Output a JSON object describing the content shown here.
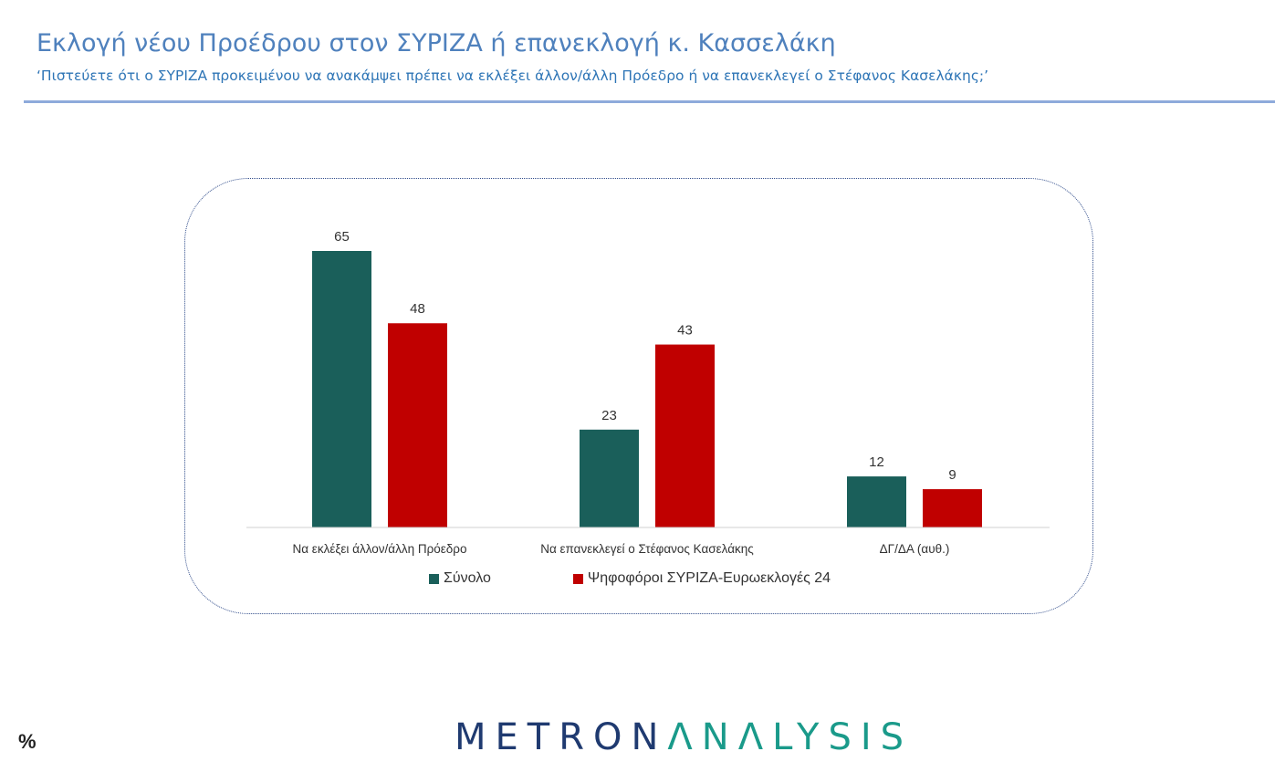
{
  "header": {
    "title": "Εκλογή νέου Προέδρου στον ΣΥΡΙΖΑ ή επανεκλογή κ. Κασσελάκη",
    "subtitle": "‘Πιστεύετε ότι ο ΣΥΡΙΖΑ προκειμένου να ανακάμψει πρέπει να εκλέξει άλλον/άλλη Πρόεδρο ή να επανεκλεγεί ο Στέφανος Κασελάκης;’"
  },
  "footer": {
    "percent_symbol": "%",
    "brand_part1": "METRON",
    "brand_part2": "ΛNΛLYSIS"
  },
  "colors": {
    "series1": "#1a5f5a",
    "series2": "#c00000",
    "title": "#4f81bd",
    "brand_dark": "#1f3a70",
    "brand_teal": "#1a9a8a"
  },
  "chart_data": {
    "type": "bar",
    "categories": [
      "Να εκλέξει άλλον/άλλη Πρόεδρο",
      "Να επανεκλεγεί ο Στέφανος Κασελάκης",
      "ΔΓ/ΔΑ (αυθ.)"
    ],
    "series": [
      {
        "name": "Σύνολο",
        "values": [
          65,
          23,
          12
        ]
      },
      {
        "name": "Ψηφοφόροι ΣΥΡΙΖΑ-Ευρωεκλογές 24",
        "values": [
          48,
          43,
          9
        ]
      }
    ],
    "ylim": [
      0,
      65
    ],
    "legend_position": "bottom",
    "grid": false
  }
}
